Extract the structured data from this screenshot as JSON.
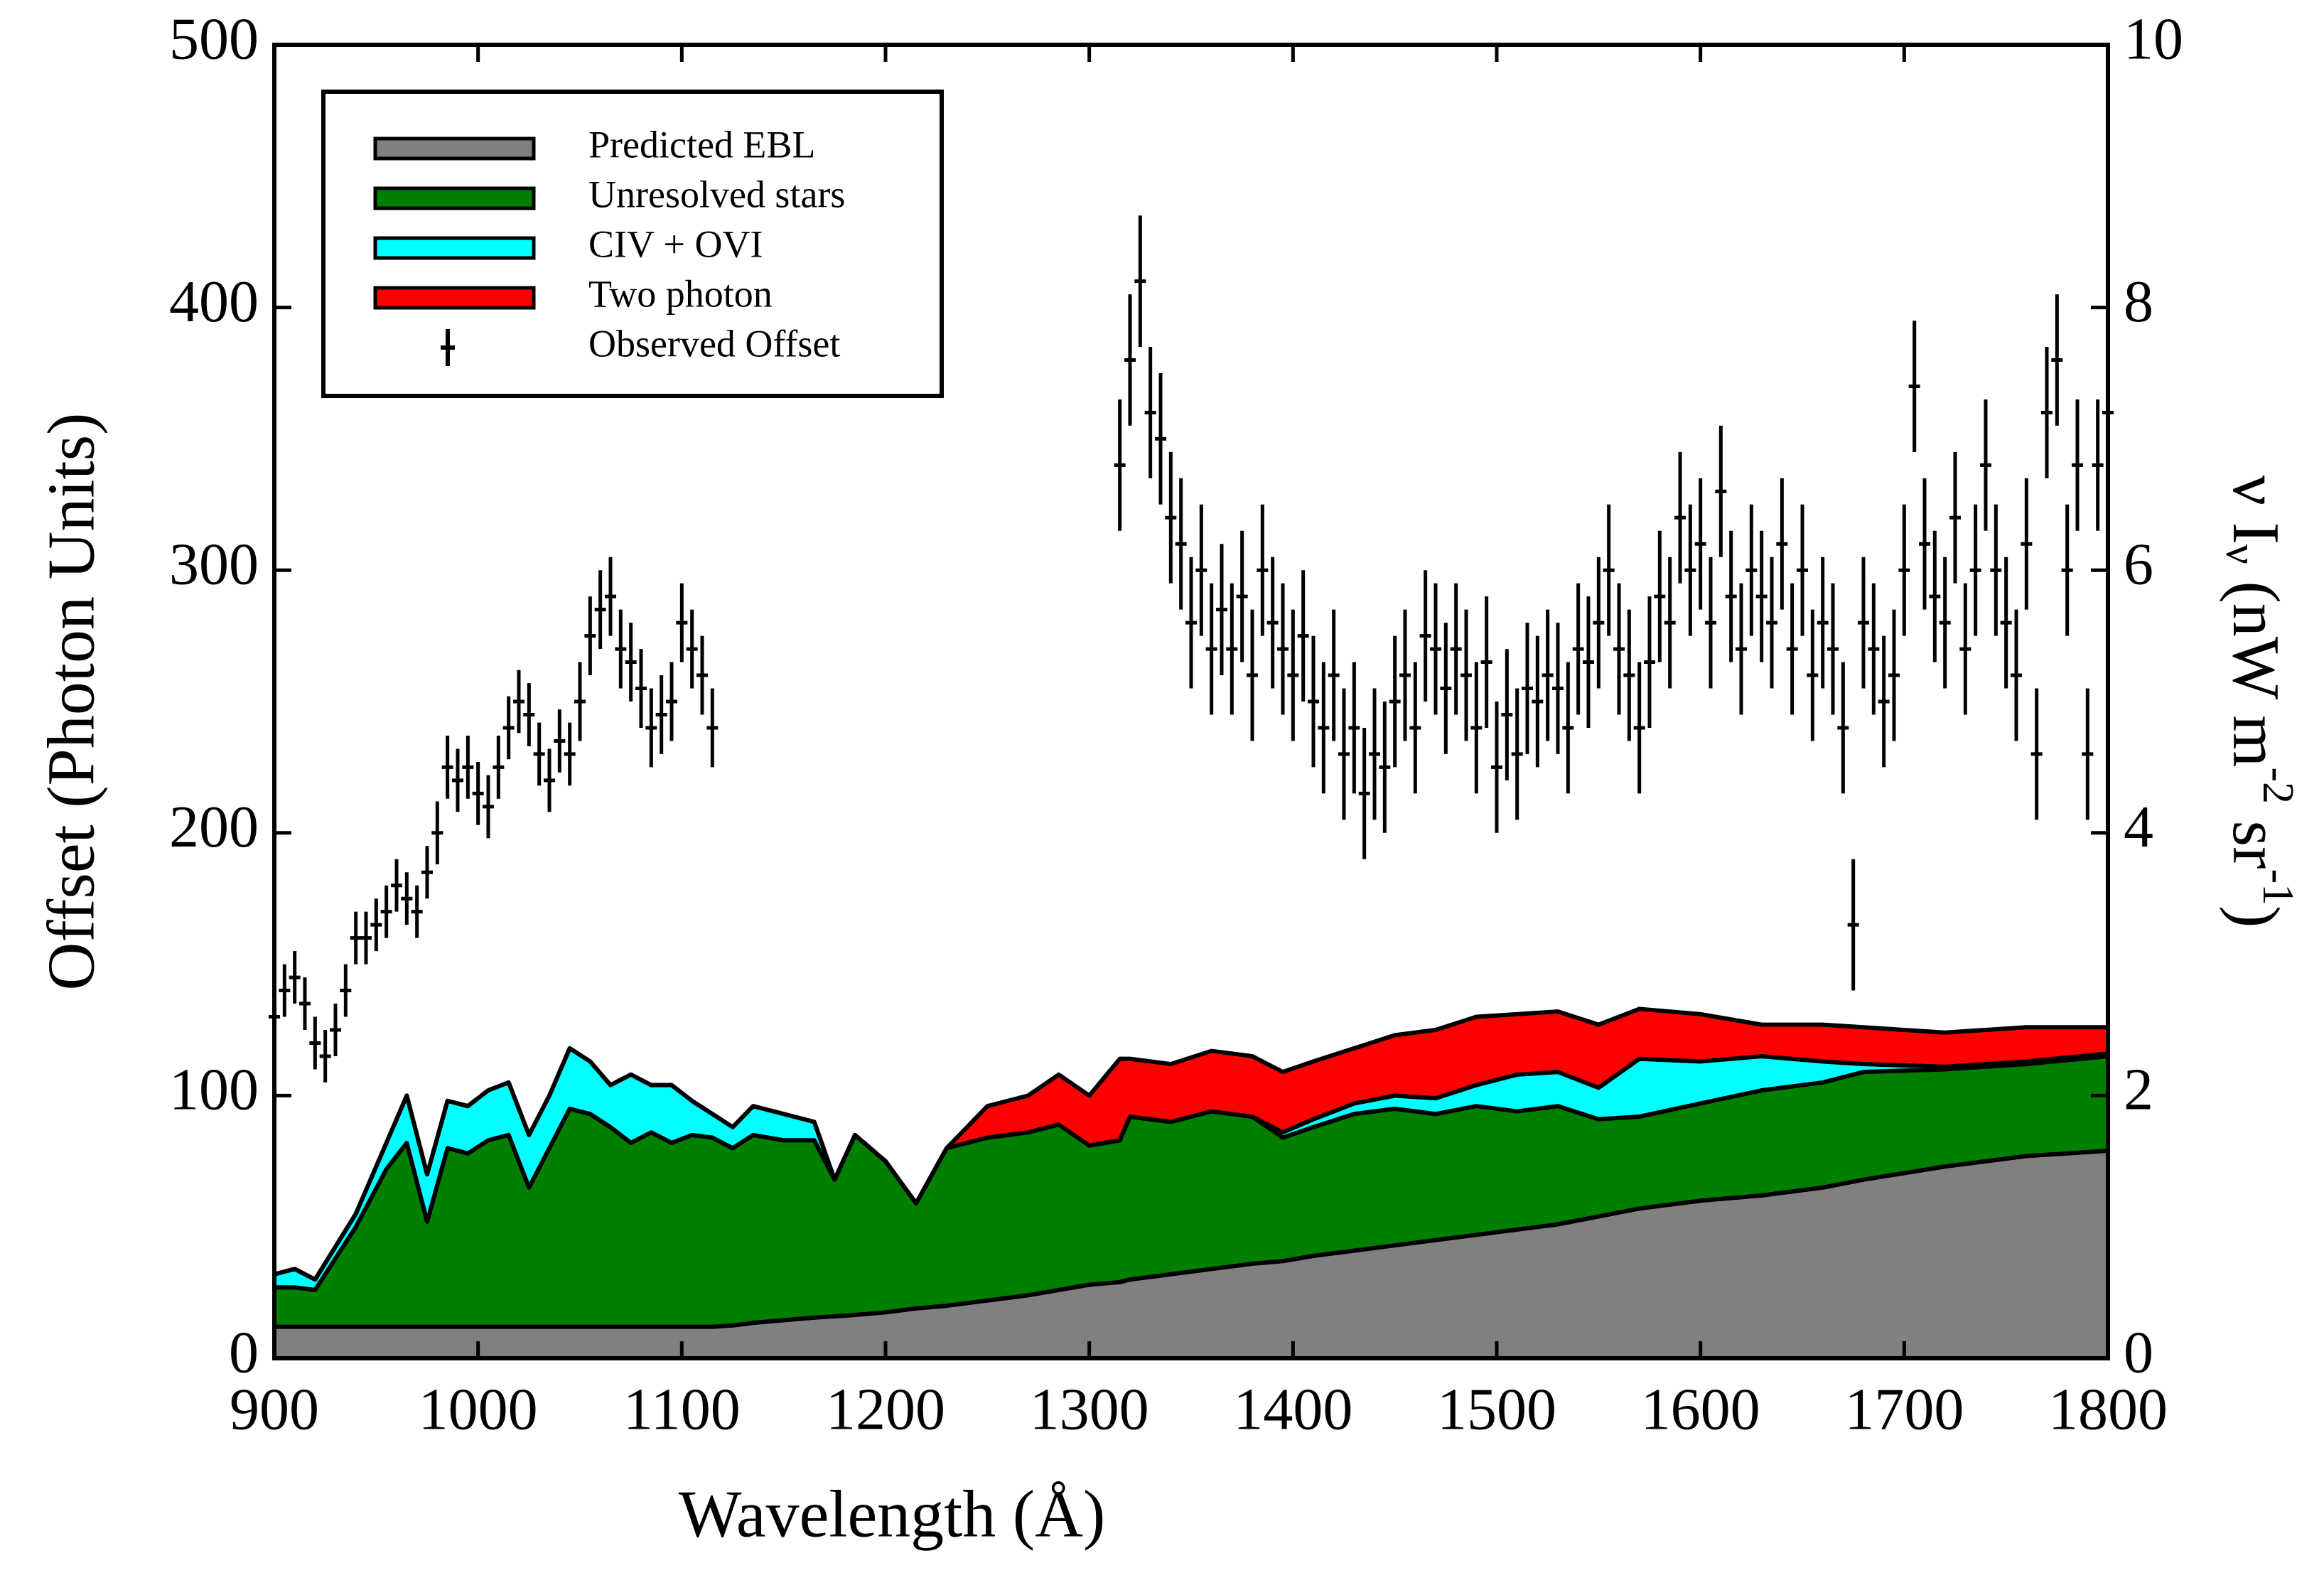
{
  "chart_data": {
    "type": "area",
    "stacked": true,
    "xlabel": "Wavelength (Å)",
    "ylabel": "Offset (Photon Units)",
    "y2label": [
      "ν I",
      "ν",
      " (nW m",
      "-2",
      " sr",
      "-1",
      ")"
    ],
    "xlim": [
      900,
      1800
    ],
    "xticks": [
      900,
      1000,
      1100,
      1200,
      1300,
      1400,
      1500,
      1600,
      1700,
      1800
    ],
    "ylim": [
      0,
      500
    ],
    "yticks": [
      0,
      100,
      200,
      300,
      400,
      500
    ],
    "y2lim": [
      0,
      10
    ],
    "y2ticks": [
      0,
      2,
      4,
      6,
      8,
      10
    ],
    "legend": "upper left",
    "x": [
      900,
      910,
      920,
      940,
      955,
      965,
      975,
      985,
      995,
      1005,
      1015,
      1025,
      1035,
      1045,
      1055,
      1065,
      1075,
      1085,
      1095,
      1105,
      1115,
      1125,
      1135,
      1150,
      1165,
      1175,
      1185,
      1200,
      1215,
      1230,
      1250,
      1270,
      1285,
      1300,
      1315,
      1320,
      1340,
      1360,
      1380,
      1395,
      1410,
      1430,
      1450,
      1470,
      1490,
      1510,
      1530,
      1550,
      1570,
      1600,
      1630,
      1660,
      1680,
      1720,
      1760,
      1800
    ],
    "series": [
      {
        "name": "Predicted EBL",
        "color": "#808080",
        "values": [
          12,
          12,
          12,
          12,
          12,
          12,
          12,
          12,
          12,
          12,
          12,
          12,
          12,
          12,
          12,
          12,
          12,
          12,
          12,
          12,
          12,
          12.5,
          13.5,
          14.5,
          15.5,
          16,
          16.5,
          17.5,
          19,
          20,
          22,
          24,
          26,
          28,
          29,
          30,
          32,
          34,
          36,
          37,
          39,
          41,
          43,
          45,
          47,
          49,
          51,
          54,
          57,
          60,
          62,
          65,
          68,
          73,
          77,
          79
        ]
      },
      {
        "name": "Unresolved stars",
        "color": "#007f00",
        "values": [
          15,
          15,
          14,
          38,
          60,
          70,
          40,
          68,
          66,
          71,
          73,
          53,
          68,
          83,
          81,
          76,
          70,
          74,
          70,
          73,
          72,
          67.5,
          71.5,
          68.5,
          67.5,
          52,
          68.5,
          57.5,
          40,
          60,
          62,
          62,
          63,
          53,
          54,
          62,
          58,
          60,
          56,
          47,
          49,
          52,
          52,
          48,
          49,
          45,
          45,
          37,
          35,
          37,
          40,
          40,
          41,
          37,
          35,
          36
        ]
      },
      {
        "name": "CIV + OVI",
        "color": "#00ffff",
        "values": [
          5,
          7,
          4,
          5,
          10,
          18,
          18,
          18,
          18,
          19,
          20,
          20,
          20,
          23,
          20,
          16,
          26,
          18,
          22,
          13,
          9,
          8,
          11,
          10,
          7,
          0,
          0,
          0,
          0,
          0,
          0,
          0,
          0,
          0,
          0,
          0,
          0,
          0,
          0,
          2,
          3,
          4,
          5,
          6,
          8,
          14,
          13,
          12,
          22,
          16,
          13,
          8,
          3,
          1,
          1,
          1
        ]
      },
      {
        "name": "Two photon",
        "color": "#ff0000",
        "values": [
          0,
          0,
          0,
          0,
          0,
          0,
          0,
          0,
          0,
          0,
          0,
          0,
          0,
          0,
          0,
          0,
          0,
          0,
          0,
          0,
          0,
          0,
          0,
          0,
          0,
          0,
          0,
          0,
          0,
          0,
          12,
          14,
          19,
          19,
          31,
          22,
          22,
          23,
          23,
          23,
          22,
          21,
          23,
          26,
          26,
          23,
          23,
          24,
          19,
          18,
          12,
          14,
          14,
          13,
          13,
          10
        ]
      },
      {
        "name": "Observed Offset",
        "type": "errorbar",
        "color": "#000000",
        "x": [
          900,
          905,
          910,
          915,
          920,
          925,
          930,
          935,
          940,
          945,
          950,
          955,
          960,
          965,
          970,
          975,
          980,
          985,
          990,
          995,
          1000,
          1005,
          1010,
          1015,
          1020,
          1025,
          1030,
          1035,
          1040,
          1045,
          1050,
          1055,
          1060,
          1065,
          1070,
          1075,
          1080,
          1085,
          1090,
          1095,
          1100,
          1105,
          1110,
          1115,
          1315,
          1320,
          1325,
          1330,
          1335,
          1340,
          1345,
          1350,
          1355,
          1360,
          1365,
          1370,
          1375,
          1380,
          1385,
          1390,
          1395,
          1400,
          1405,
          1410,
          1415,
          1420,
          1425,
          1430,
          1435,
          1440,
          1445,
          1450,
          1455,
          1460,
          1465,
          1470,
          1475,
          1480,
          1485,
          1490,
          1495,
          1500,
          1505,
          1510,
          1515,
          1520,
          1525,
          1530,
          1535,
          1540,
          1545,
          1550,
          1555,
          1560,
          1565,
          1570,
          1575,
          1580,
          1585,
          1590,
          1595,
          1600,
          1605,
          1610,
          1615,
          1620,
          1625,
          1630,
          1635,
          1640,
          1645,
          1650,
          1655,
          1660,
          1665,
          1670,
          1675,
          1680,
          1685,
          1690,
          1695,
          1700,
          1705,
          1710,
          1715,
          1720,
          1725,
          1730,
          1735,
          1740,
          1745,
          1750,
          1755,
          1760,
          1765,
          1770,
          1775,
          1780,
          1785,
          1790,
          1795,
          1800
        ],
        "values": [
          130,
          140,
          145,
          135,
          120,
          115,
          125,
          140,
          160,
          160,
          165,
          170,
          180,
          175,
          170,
          185,
          200,
          225,
          220,
          225,
          215,
          210,
          225,
          240,
          250,
          245,
          230,
          220,
          235,
          230,
          250,
          275,
          285,
          290,
          270,
          265,
          255,
          240,
          245,
          250,
          280,
          270,
          260,
          240,
          340,
          380,
          410,
          360,
          350,
          320,
          310,
          280,
          300,
          270,
          285,
          270,
          290,
          260,
          300,
          280,
          270,
          260,
          275,
          250,
          240,
          260,
          230,
          240,
          215,
          230,
          225,
          250,
          260,
          240,
          275,
          270,
          255,
          270,
          260,
          240,
          265,
          225,
          245,
          230,
          255,
          250,
          260,
          255,
          240,
          270,
          265,
          280,
          300,
          270,
          260,
          240,
          265,
          290,
          280,
          320,
          300,
          310,
          280,
          330,
          290,
          270,
          300,
          290,
          280,
          310,
          270,
          300,
          260,
          280,
          270,
          240,
          165,
          280,
          270,
          250,
          260,
          300,
          370,
          310,
          290,
          280,
          320,
          270,
          300,
          340,
          300,
          280,
          260,
          310,
          230,
          360,
          380,
          300,
          340,
          230,
          340,
          360
        ],
        "errors": [
          10,
          10,
          10,
          10,
          10,
          10,
          10,
          10,
          10,
          10,
          10,
          10,
          10,
          10,
          10,
          10,
          12,
          12,
          12,
          12,
          12,
          12,
          12,
          12,
          12,
          12,
          12,
          12,
          12,
          12,
          15,
          15,
          15,
          15,
          15,
          15,
          15,
          15,
          15,
          15,
          15,
          15,
          15,
          15,
          25,
          25,
          25,
          25,
          25,
          25,
          25,
          25,
          25,
          25,
          25,
          25,
          25,
          25,
          25,
          25,
          25,
          25,
          25,
          25,
          25,
          25,
          25,
          25,
          25,
          25,
          25,
          25,
          25,
          25,
          25,
          25,
          25,
          25,
          25,
          25,
          25,
          25,
          25,
          25,
          25,
          25,
          25,
          25,
          25,
          25,
          25,
          25,
          25,
          25,
          25,
          25,
          25,
          25,
          25,
          25,
          25,
          25,
          25,
          25,
          25,
          25,
          25,
          25,
          25,
          25,
          25,
          25,
          25,
          25,
          25,
          25,
          25,
          25,
          25,
          25,
          25,
          25,
          25,
          25,
          25,
          25,
          25,
          25,
          25,
          25,
          25,
          25,
          25,
          25,
          25,
          25,
          25,
          25,
          25,
          25,
          25,
          25
        ]
      }
    ]
  }
}
